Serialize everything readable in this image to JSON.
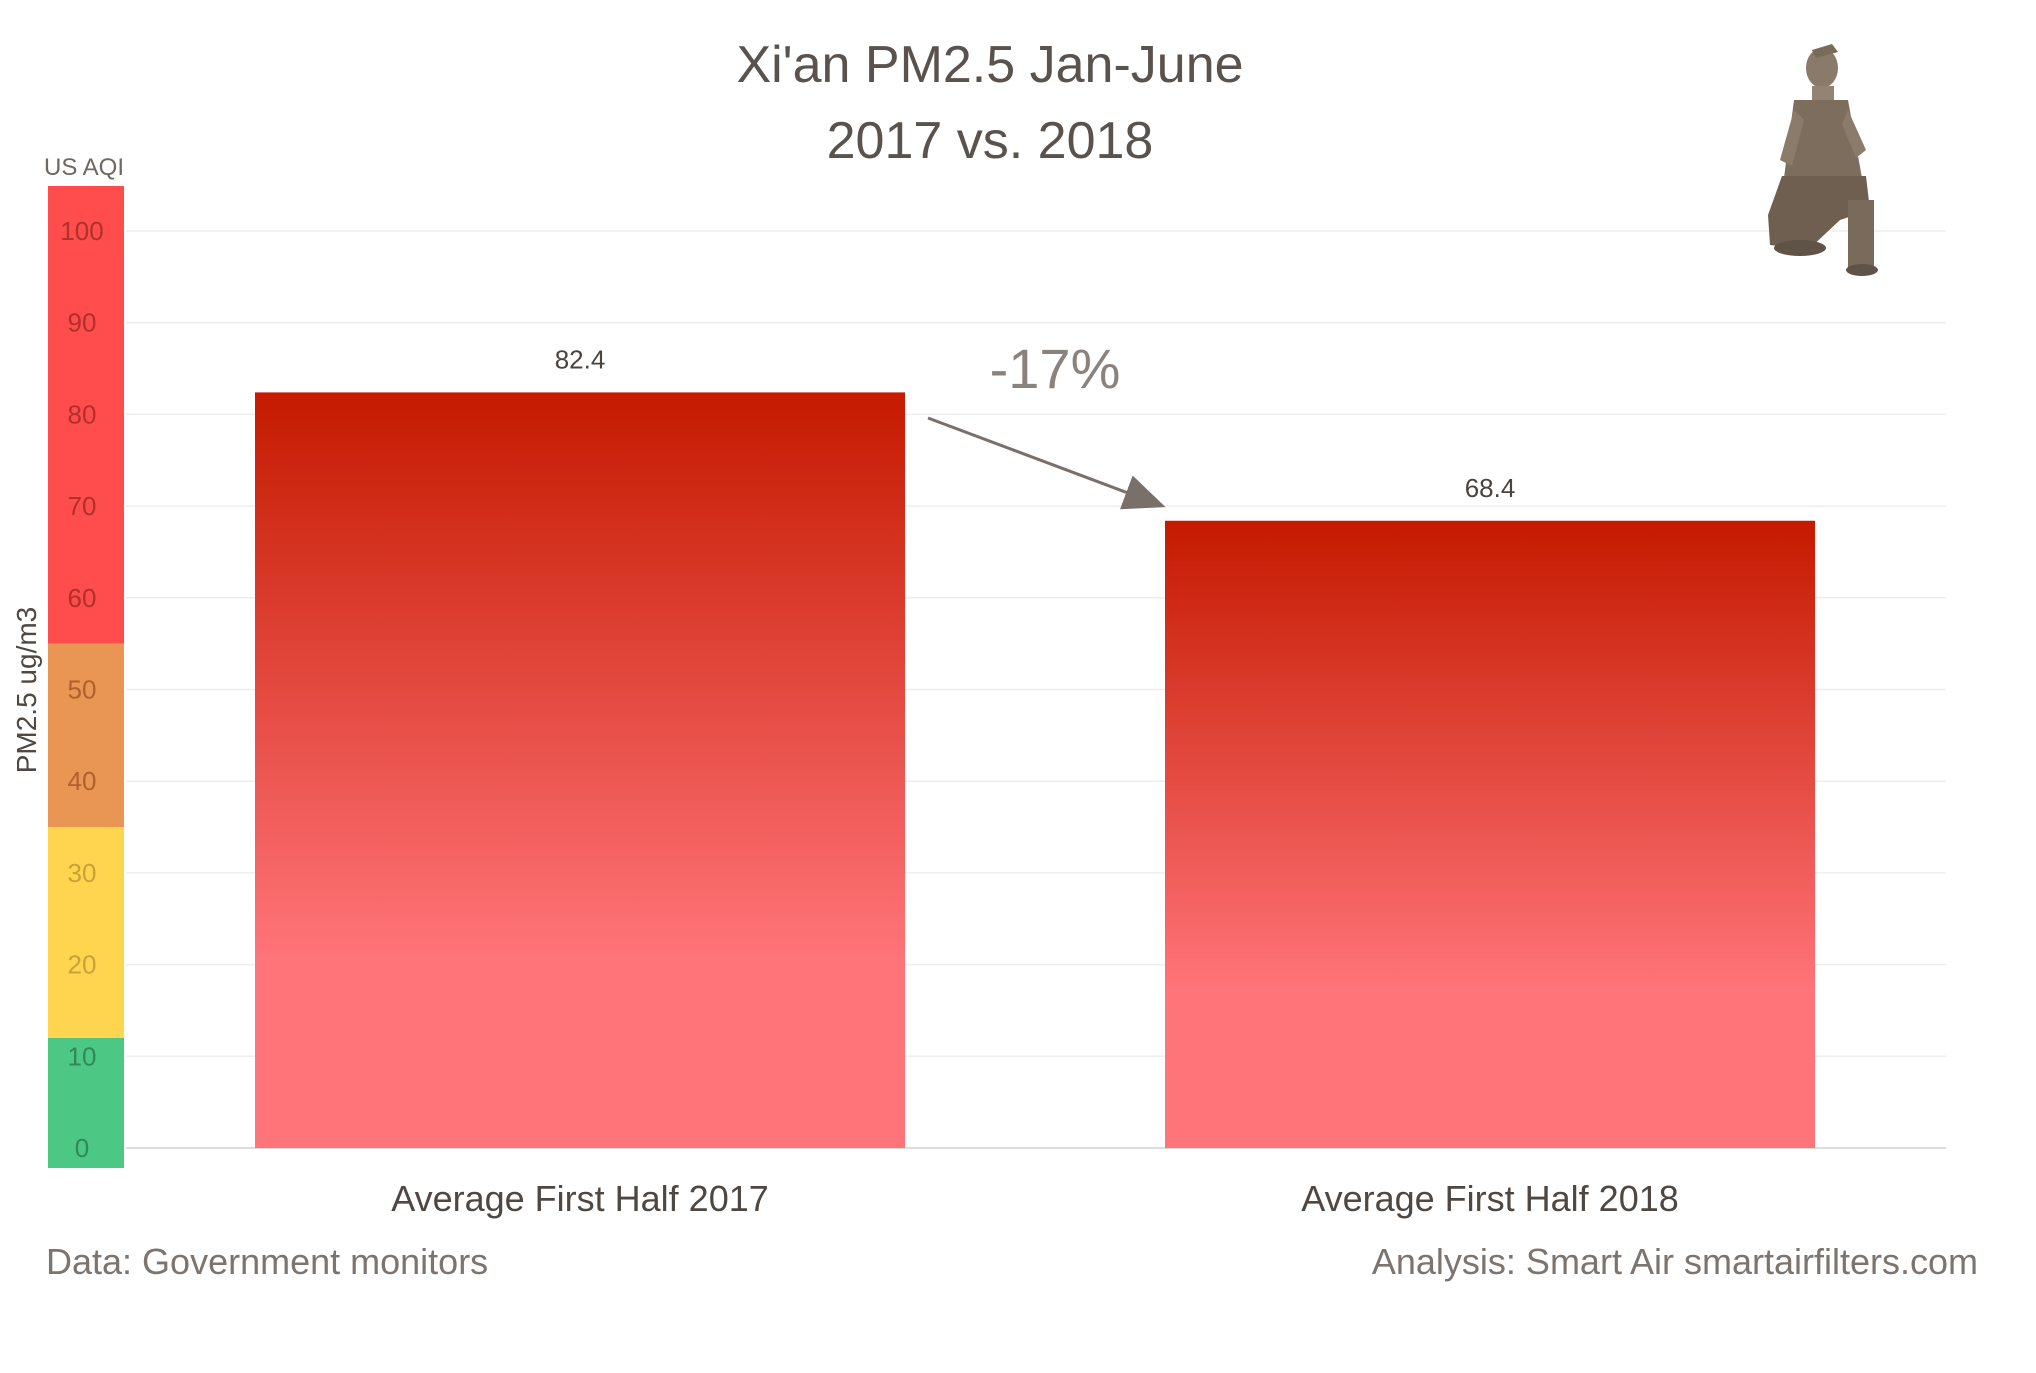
{
  "header": {
    "title_line1": "Xi'an PM2.5 Jan-June",
    "title_line2": "2017 vs. 2018"
  },
  "aqi_band": {
    "label": "US AQI",
    "bands": [
      {
        "from": 0,
        "to": 12,
        "color": "#4cc784"
      },
      {
        "from": 12,
        "to": 35,
        "color": "#ffd54f"
      },
      {
        "from": 35,
        "to": 55,
        "color": "#e99654"
      },
      {
        "from": 55,
        "to": 105,
        "color": "#ff4d4d"
      }
    ]
  },
  "annotation": {
    "change_label": "-17%",
    "arrow_color": "#7a706a"
  },
  "footer": {
    "source": "Data: Government monitors",
    "analysis": "Analysis: Smart Air smartairfilters.com"
  },
  "decoration": {
    "icon": "terracotta-warrior-icon"
  },
  "chart_data": {
    "type": "bar",
    "title": "Xi'an PM2.5 Jan-June 2017 vs. 2018",
    "categories": [
      "Average First Half 2017",
      "Average First Half 2018"
    ],
    "values": [
      82.4,
      68.4
    ],
    "data_labels": [
      "82.4",
      "68.4"
    ],
    "ylabel": "PM2.5 ug/m3",
    "xlabel": "",
    "ylim": [
      0,
      105
    ],
    "yticks": [
      0,
      10,
      20,
      30,
      40,
      50,
      60,
      70,
      80,
      90,
      100
    ],
    "ytick_labels": [
      "0",
      "10",
      "20",
      "30",
      "40",
      "50",
      "60",
      "70",
      "80",
      "90",
      "100"
    ],
    "grid": true,
    "bar_color_top": "#c51a00",
    "bar_color_bottom": "#ff7479"
  }
}
